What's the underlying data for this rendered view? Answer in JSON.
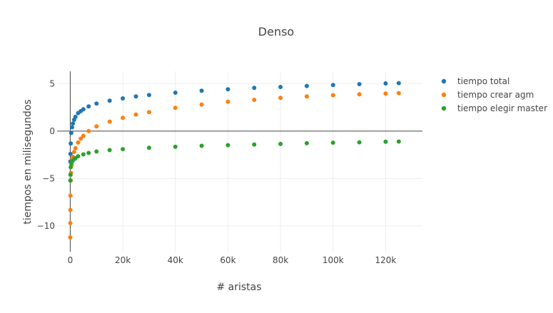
{
  "chart_data": {
    "type": "scatter",
    "title": "Denso",
    "xlabel": "# aristas",
    "ylabel": "tiempos en milisegundos",
    "xlim": [
      -5000,
      134000
    ],
    "ylim": [
      -12.7,
      6.3
    ],
    "x_ticks": [
      0,
      20000,
      40000,
      60000,
      80000,
      100000,
      120000
    ],
    "x_tick_labels": [
      "0",
      "20k",
      "40k",
      "60k",
      "80k",
      "100k",
      "120k"
    ],
    "y_ticks": [
      -10,
      -5,
      0,
      5
    ],
    "y_tick_labels": [
      "−10",
      "−5",
      "0",
      "5"
    ],
    "grid": true,
    "legend_position": "top-right",
    "series": [
      {
        "name": "tiempo total",
        "color": "#1f77b4",
        "x": [
          50,
          100,
          200,
          400,
          700,
          1000,
          1500,
          2000,
          3000,
          4000,
          5000,
          7000,
          10000,
          15000,
          20000,
          25000,
          30000,
          40000,
          50000,
          60000,
          70000,
          80000,
          90000,
          100000,
          110000,
          120000,
          125000
        ],
        "y": [
          -3.2,
          -2.4,
          -1.3,
          -0.2,
          0.4,
          0.8,
          1.2,
          1.5,
          1.9,
          2.1,
          2.3,
          2.6,
          2.9,
          3.2,
          3.45,
          3.65,
          3.8,
          4.05,
          4.25,
          4.4,
          4.55,
          4.65,
          4.75,
          4.85,
          4.95,
          5.02,
          5.05
        ]
      },
      {
        "name": "tiempo crear agm",
        "color": "#ff7f0e",
        "x": [
          10,
          30,
          50,
          100,
          200,
          300,
          500,
          800,
          1000,
          1500,
          2000,
          3000,
          4000,
          5000,
          7000,
          10000,
          15000,
          20000,
          25000,
          30000,
          40000,
          50000,
          60000,
          70000,
          80000,
          90000,
          100000,
          110000,
          120000,
          125000
        ],
        "y": [
          -11.2,
          -9.7,
          -8.3,
          -6.8,
          -5.2,
          -4.4,
          -3.6,
          -3.0,
          -2.7,
          -2.2,
          -1.8,
          -1.2,
          -0.8,
          -0.5,
          0.0,
          0.5,
          1.0,
          1.4,
          1.75,
          2.0,
          2.45,
          2.8,
          3.1,
          3.3,
          3.5,
          3.65,
          3.78,
          3.88,
          3.95,
          4.0
        ]
      },
      {
        "name": "tiempo elegir master",
        "color": "#2ca02c",
        "x": [
          50,
          100,
          200,
          400,
          700,
          1000,
          1500,
          2000,
          3000,
          5000,
          7000,
          10000,
          15000,
          20000,
          30000,
          40000,
          50000,
          60000,
          70000,
          80000,
          90000,
          100000,
          110000,
          120000,
          125000
        ],
        "y": [
          -5.2,
          -4.6,
          -3.8,
          -3.4,
          -3.2,
          -3.1,
          -2.95,
          -2.85,
          -2.65,
          -2.45,
          -2.3,
          -2.15,
          -2.0,
          -1.9,
          -1.75,
          -1.65,
          -1.55,
          -1.48,
          -1.42,
          -1.35,
          -1.28,
          -1.22,
          -1.18,
          -1.12,
          -1.1
        ]
      }
    ]
  }
}
